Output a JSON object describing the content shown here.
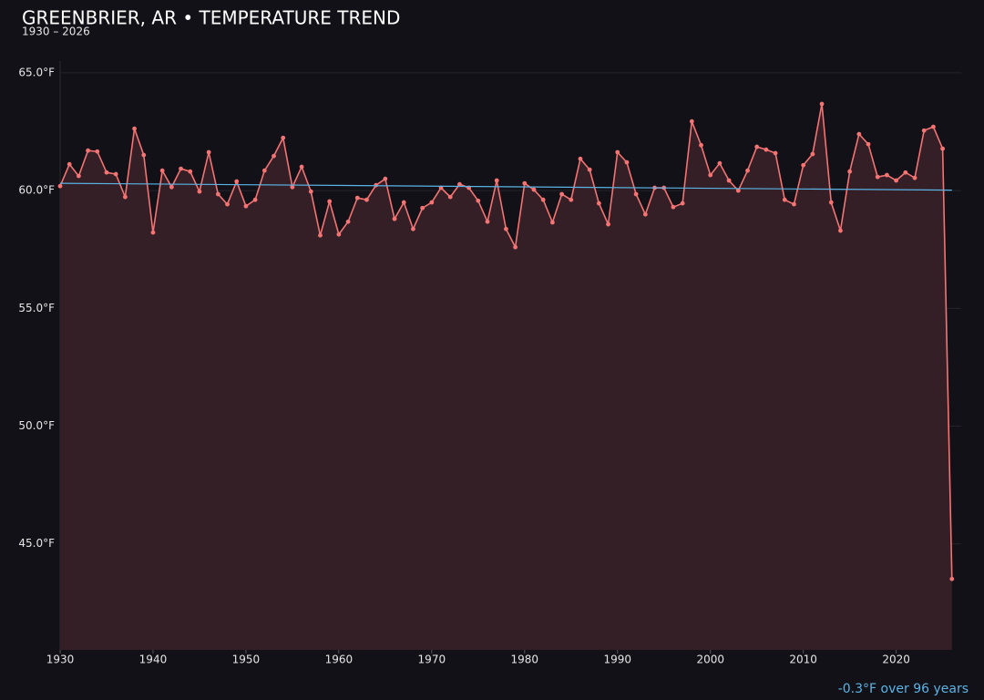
{
  "chart_data": {
    "type": "line",
    "title": "GREENBRIER, AR • TEMPERATURE TREND",
    "subtitle": "1930 – 2026",
    "annotation": "-0.3°F over 96 years",
    "x": [
      1930,
      1931,
      1932,
      1933,
      1934,
      1935,
      1936,
      1937,
      1938,
      1939,
      1940,
      1941,
      1942,
      1943,
      1944,
      1945,
      1946,
      1947,
      1948,
      1949,
      1950,
      1951,
      1952,
      1953,
      1954,
      1955,
      1956,
      1957,
      1958,
      1959,
      1960,
      1961,
      1962,
      1963,
      1964,
      1965,
      1966,
      1967,
      1968,
      1969,
      1970,
      1971,
      1972,
      1973,
      1974,
      1975,
      1976,
      1977,
      1978,
      1979,
      1980,
      1981,
      1982,
      1983,
      1984,
      1985,
      1986,
      1987,
      1988,
      1989,
      1990,
      1991,
      1992,
      1993,
      1994,
      1995,
      1996,
      1997,
      1998,
      1999,
      2000,
      2001,
      2002,
      2003,
      2004,
      2005,
      2006,
      2007,
      2008,
      2009,
      2010,
      2011,
      2012,
      2013,
      2014,
      2015,
      2016,
      2017,
      2018,
      2019,
      2020,
      2021,
      2022,
      2023,
      2024,
      2025,
      2026
    ],
    "series": [
      {
        "color": "#f47373",
        "fill": "#351f26",
        "values": [
          60.19,
          61.12,
          60.62,
          61.7,
          61.66,
          60.77,
          60.7,
          59.73,
          62.63,
          61.51,
          58.22,
          60.85,
          60.15,
          60.93,
          60.81,
          59.96,
          61.63,
          59.85,
          59.42,
          60.39,
          59.34,
          59.61,
          60.85,
          61.47,
          62.24,
          60.15,
          61.01,
          59.96,
          58.1,
          59.54,
          58.14,
          58.68,
          59.69,
          59.61,
          60.23,
          60.5,
          58.8,
          59.5,
          58.37,
          59.26,
          59.5,
          60.12,
          59.73,
          60.27,
          60.12,
          59.57,
          58.68,
          60.43,
          58.37,
          57.6,
          60.31,
          60.04,
          59.61,
          58.65,
          59.85,
          59.61,
          61.35,
          60.89,
          59.46,
          58.57,
          61.63,
          61.2,
          59.85,
          58.99,
          60.12,
          60.12,
          59.3,
          59.46,
          62.94,
          61.93,
          60.66,
          61.16,
          60.43,
          60.0,
          60.85,
          61.86,
          61.74,
          61.59,
          59.61,
          59.42,
          61.08,
          61.55,
          63.68,
          59.5,
          58.3,
          60.81,
          62.4,
          61.97,
          60.58,
          60.66,
          60.43,
          60.77,
          60.54,
          62.55,
          62.71,
          61.78,
          43.51
        ]
      }
    ],
    "trend": {
      "color": "#5ab4e6",
      "x": [
        1930,
        2026
      ],
      "values": [
        60.31,
        60.02
      ]
    },
    "xlim": [
      1930,
      2027
    ],
    "xticks": [
      1930,
      1940,
      1950,
      1960,
      1970,
      1980,
      1990,
      2000,
      2010,
      2020
    ],
    "ylim": [
      40.5,
      65.5
    ],
    "yticks": [
      {
        "value": 45,
        "label": "45.0°F"
      },
      {
        "value": 50,
        "label": "50.0°F"
      },
      {
        "value": 55,
        "label": "55.0°F"
      },
      {
        "value": 60,
        "label": "60.0°F"
      },
      {
        "value": 65,
        "label": "65.0°F"
      }
    ],
    "grid": true
  }
}
